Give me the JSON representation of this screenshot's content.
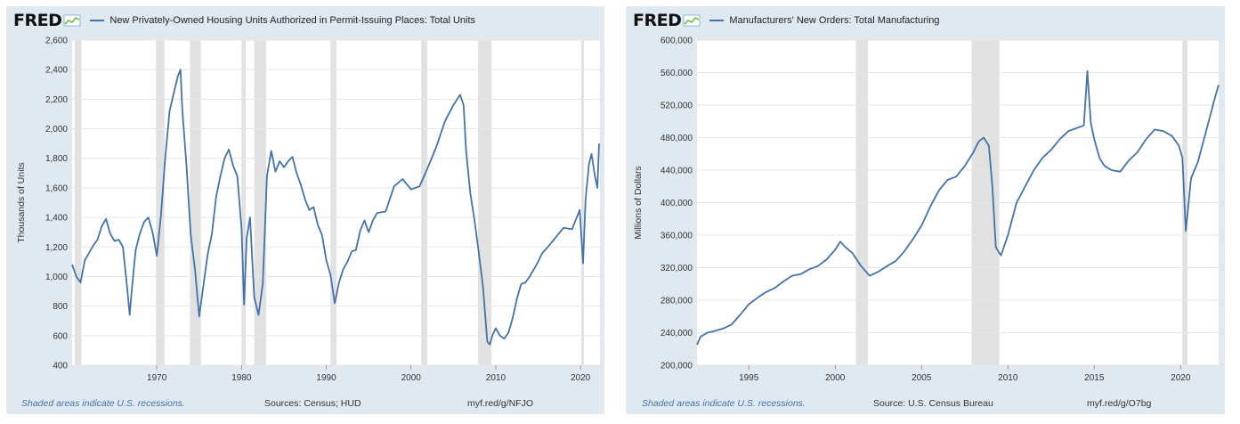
{
  "charts": [
    {
      "logo": "FRED",
      "title": "New Privately-Owned Housing Units Authorized in Permit-Issuing Places: Total Units",
      "footer": {
        "recession_note": "Shaded areas indicate U.S. recessions.",
        "sources": "Sources: Census; HUD",
        "link": "myf.red/g/NFJO"
      }
    },
    {
      "logo": "FRED",
      "title": "Manufacturers' New Orders: Total Manufacturing",
      "footer": {
        "recession_note": "Shaded areas indicate U.S. recessions.",
        "sources": "Source: U.S. Census Bureau",
        "link": "myf.red/g/O7bg"
      }
    }
  ],
  "colors": {
    "line": "#4572a7",
    "recession": "#e1e1e1",
    "grid": "#e6e6e6",
    "panel": "#e1e9f0"
  },
  "chart_data": [
    {
      "type": "line",
      "title": "New Privately-Owned Housing Units Authorized in Permit-Issuing Places: Total Units",
      "xlabel": "",
      "ylabel": "Thousands of Units",
      "xlim": [
        1960,
        2022.3
      ],
      "ylim": [
        400,
        2600
      ],
      "xticks": [
        1970,
        1980,
        1990,
        2000,
        2010,
        2020
      ],
      "yticks": [
        400,
        600,
        800,
        1000,
        1200,
        1400,
        1600,
        1800,
        2000,
        2200,
        2400,
        2600
      ],
      "ytick_labels": [
        "400",
        "600",
        "800",
        "1,000",
        "1,200",
        "1,400",
        "1,600",
        "1,800",
        "2,000",
        "2,200",
        "2,400",
        "2,600"
      ],
      "recessions": [
        [
          1960.3,
          1961.1
        ],
        [
          1969.9,
          1970.9
        ],
        [
          1973.9,
          1975.2
        ],
        [
          1980.0,
          1980.5
        ],
        [
          1981.5,
          1982.9
        ],
        [
          1990.5,
          1991.2
        ],
        [
          2001.2,
          2001.9
        ],
        [
          2007.9,
          2009.5
        ],
        [
          2020.1,
          2020.4
        ]
      ],
      "grid": true,
      "legend": "top-left",
      "series": [
        {
          "name": "New Privately-Owned Housing Units Authorized in Permit-Issuing Places: Total Units",
          "x": [
            1960.0,
            1960.5,
            1961.0,
            1961.5,
            1962.0,
            1962.5,
            1963.0,
            1963.5,
            1964.0,
            1964.5,
            1965.0,
            1965.5,
            1966.0,
            1966.5,
            1966.8,
            1967.0,
            1967.5,
            1968.0,
            1968.5,
            1969.0,
            1969.5,
            1970.0,
            1970.5,
            1971.0,
            1971.5,
            1972.0,
            1972.5,
            1972.8,
            1973.0,
            1973.5,
            1974.0,
            1974.5,
            1975.0,
            1975.5,
            1976.0,
            1976.5,
            1977.0,
            1977.5,
            1978.0,
            1978.5,
            1979.0,
            1979.5,
            1980.0,
            1980.3,
            1980.6,
            1981.0,
            1981.5,
            1982.0,
            1982.5,
            1983.0,
            1983.5,
            1984.0,
            1984.5,
            1985.0,
            1985.5,
            1986.0,
            1986.5,
            1987.0,
            1987.5,
            1988.0,
            1988.5,
            1989.0,
            1989.5,
            1990.0,
            1990.5,
            1991.0,
            1991.5,
            1992.0,
            1992.5,
            1993.0,
            1993.5,
            1994.0,
            1994.5,
            1995.0,
            1995.5,
            1996.0,
            1997.0,
            1998.0,
            1999.0,
            2000.0,
            2001.0,
            2002.0,
            2003.0,
            2004.0,
            2005.0,
            2005.8,
            2006.2,
            2006.5,
            2007.0,
            2007.5,
            2008.0,
            2008.5,
            2009.0,
            2009.3,
            2009.6,
            2010.0,
            2010.5,
            2011.0,
            2011.5,
            2012.0,
            2012.5,
            2013.0,
            2013.5,
            2014.0,
            2014.5,
            2015.0,
            2015.5,
            2016.0,
            2017.0,
            2018.0,
            2019.0,
            2019.9,
            2020.3,
            2020.6,
            2021.0,
            2021.3,
            2021.7,
            2022.0,
            2022.2
          ],
          "y": [
            1080,
            1000,
            960,
            1110,
            1160,
            1210,
            1250,
            1340,
            1390,
            1290,
            1240,
            1250,
            1200,
            920,
            740,
            880,
            1180,
            1290,
            1370,
            1400,
            1300,
            1140,
            1420,
            1810,
            2120,
            2240,
            2360,
            2400,
            2140,
            1750,
            1280,
            1050,
            730,
            940,
            1150,
            1290,
            1540,
            1680,
            1800,
            1860,
            1750,
            1680,
            1320,
            810,
            1260,
            1400,
            860,
            740,
            950,
            1680,
            1850,
            1710,
            1780,
            1740,
            1780,
            1810,
            1700,
            1620,
            1520,
            1450,
            1470,
            1350,
            1280,
            1110,
            1010,
            820,
            960,
            1050,
            1100,
            1170,
            1180,
            1310,
            1380,
            1300,
            1380,
            1430,
            1440,
            1610,
            1660,
            1590,
            1610,
            1740,
            1880,
            2050,
            2160,
            2230,
            2160,
            1850,
            1560,
            1380,
            1160,
            930,
            560,
            540,
            600,
            650,
            600,
            580,
            620,
            720,
            850,
            950,
            960,
            1000,
            1050,
            1100,
            1160,
            1190,
            1260,
            1330,
            1320,
            1450,
            1090,
            1520,
            1760,
            1830,
            1680,
            1600,
            1900
          ]
        }
      ]
    },
    {
      "type": "line",
      "title": "Manufacturers' New Orders: Total Manufacturing",
      "xlabel": "",
      "ylabel": "Millions of Dollars",
      "xlim": [
        1992,
        2022.2
      ],
      "ylim": [
        200000,
        600000
      ],
      "xticks": [
        1995,
        2000,
        2005,
        2010,
        2015,
        2020
      ],
      "yticks": [
        200000,
        240000,
        280000,
        320000,
        360000,
        400000,
        440000,
        480000,
        520000,
        560000,
        600000
      ],
      "ytick_labels": [
        "200,000",
        "240,000",
        "280,000",
        "320,000",
        "360,000",
        "400,000",
        "440,000",
        "480,000",
        "520,000",
        "560,000",
        "600,000"
      ],
      "recessions": [
        [
          2001.2,
          2001.9
        ],
        [
          2007.9,
          2009.5
        ],
        [
          2020.1,
          2020.4
        ]
      ],
      "grid": true,
      "legend": "top-left",
      "series": [
        {
          "name": "Manufacturers' New Orders: Total Manufacturing",
          "x": [
            1992.0,
            1992.2,
            1992.6,
            1993.0,
            1993.5,
            1994.0,
            1994.5,
            1995.0,
            1995.5,
            1996.0,
            1996.5,
            1997.0,
            1997.5,
            1998.0,
            1998.5,
            1999.0,
            1999.5,
            2000.0,
            2000.3,
            2000.6,
            2001.0,
            2001.5,
            2002.0,
            2002.5,
            2003.0,
            2003.5,
            2004.0,
            2004.5,
            2005.0,
            2005.5,
            2006.0,
            2006.5,
            2007.0,
            2007.5,
            2008.0,
            2008.3,
            2008.6,
            2008.9,
            2009.1,
            2009.3,
            2009.6,
            2010.0,
            2010.5,
            2011.0,
            2011.5,
            2012.0,
            2012.5,
            2013.0,
            2013.5,
            2014.0,
            2014.4,
            2014.6,
            2014.8,
            2015.0,
            2015.3,
            2015.6,
            2016.0,
            2016.5,
            2017.0,
            2017.5,
            2018.0,
            2018.5,
            2019.0,
            2019.5,
            2019.9,
            2020.1,
            2020.3,
            2020.6,
            2021.0,
            2021.5,
            2022.0,
            2022.2
          ],
          "y": [
            225000,
            235000,
            240000,
            242000,
            245000,
            250000,
            262000,
            275000,
            283000,
            290000,
            295000,
            303000,
            310000,
            312000,
            318000,
            322000,
            330000,
            342000,
            352000,
            345000,
            338000,
            322000,
            310000,
            315000,
            322000,
            328000,
            340000,
            355000,
            372000,
            395000,
            415000,
            428000,
            432000,
            445000,
            462000,
            475000,
            480000,
            470000,
            420000,
            345000,
            335000,
            360000,
            400000,
            420000,
            440000,
            455000,
            465000,
            478000,
            488000,
            492000,
            495000,
            562000,
            498000,
            478000,
            455000,
            445000,
            440000,
            438000,
            452000,
            462000,
            478000,
            490000,
            488000,
            482000,
            470000,
            455000,
            365000,
            430000,
            450000,
            490000,
            530000,
            545000
          ]
        }
      ]
    }
  ]
}
